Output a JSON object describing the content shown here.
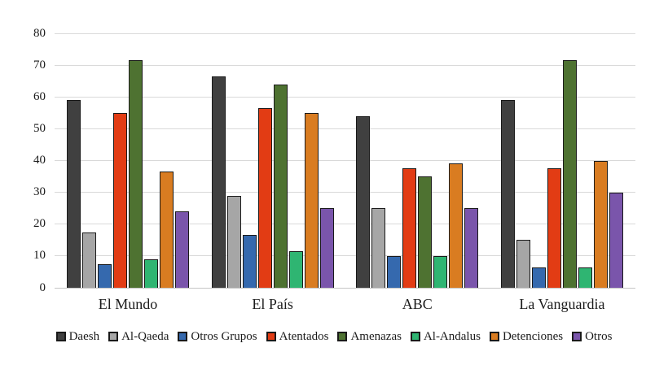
{
  "chart_data": {
    "type": "bar",
    "title": "",
    "xlabel": "",
    "ylabel": "",
    "categories": [
      "El Mundo",
      "El País",
      "ABC",
      "La Vanguardia"
    ],
    "series": [
      {
        "name": "Daesh",
        "color": "#404040",
        "values": [
          59,
          66.5,
          54,
          59
        ]
      },
      {
        "name": "Al-Qaeda",
        "color": "#a6a6a6",
        "values": [
          17.5,
          29,
          25,
          15
        ]
      },
      {
        "name": "Otros Grupos",
        "color": "#3569ae",
        "values": [
          7.5,
          16.5,
          10,
          6.5
        ]
      },
      {
        "name": "Atentados",
        "color": "#e23c14",
        "values": [
          55,
          56.5,
          37.5,
          37.5
        ]
      },
      {
        "name": "Amenazas",
        "color": "#4e7231",
        "values": [
          71.5,
          64,
          35,
          71.5
        ]
      },
      {
        "name": "Al-Andalus",
        "color": "#2fb572",
        "values": [
          9,
          11.5,
          10,
          6.5
        ]
      },
      {
        "name": "Detenciones",
        "color": "#d97c21",
        "values": [
          36.5,
          55,
          39,
          40
        ]
      },
      {
        "name": "Otros",
        "color": "#7a55ab",
        "values": [
          24,
          25,
          25,
          30
        ]
      }
    ],
    "ylim": [
      0,
      80
    ],
    "ytick_step": 10,
    "ytick_labels": [
      "0",
      "10",
      "20",
      "30",
      "40",
      "50",
      "60",
      "70",
      "80"
    ],
    "grid": true,
    "legend_position": "bottom",
    "colors": {
      "bar_border": "#1a1a1a",
      "gridline": "#d9d9d9",
      "axis_line": "#c6c6c6",
      "text": "#1a1a1a",
      "background": "#ffffff"
    }
  }
}
